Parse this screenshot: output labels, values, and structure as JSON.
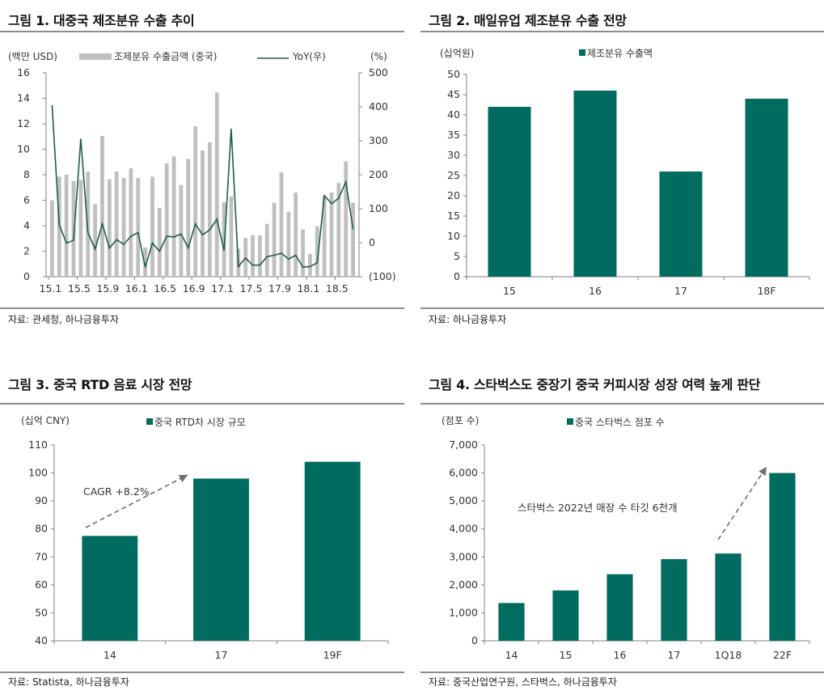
{
  "colors": {
    "bar_gray": "#bfbfbf",
    "line_green": "#1f5c4e",
    "bar_teal": "#006b5f",
    "axis": "#808080",
    "arrow": "#6e6e6e"
  },
  "chart_data": [
    {
      "id": "fig1",
      "type": "bar+line",
      "title": "그림 1. 대중국 제조분유 수출 추이",
      "ylabel_left": "(백만 USD)",
      "ylabel_right": "(%)",
      "legend": [
        "조제분유 수출금액 (중국)",
        "YoY(우)"
      ],
      "legend_position": "top",
      "ylim_left": [
        0,
        16
      ],
      "yticks_left": [
        "0",
        "2",
        "4",
        "6",
        "8",
        "10",
        "12",
        "14",
        "16"
      ],
      "ylim_right": [
        -100,
        500
      ],
      "yticks_right": [
        "(100)",
        "0",
        "100",
        "200",
        "300",
        "400",
        "500"
      ],
      "xtick_labels": [
        "15.1",
        "15.5",
        "15.9",
        "16.1",
        "16.5",
        "16.9",
        "17.1",
        "17.5",
        "17.9",
        "18.1",
        "18.5"
      ],
      "xtick_every": 4,
      "series": [
        {
          "name": "조제분유 수출금액 (중국)",
          "type": "bar",
          "axis": "left",
          "values": [
            6.0,
            7.85,
            8.0,
            7.5,
            7.6,
            8.25,
            5.7,
            11.05,
            7.65,
            8.25,
            7.75,
            8.5,
            7.75,
            2.3,
            7.85,
            5.4,
            8.9,
            9.45,
            7.2,
            9.25,
            11.8,
            9.9,
            10.55,
            14.45,
            5.85,
            6.3,
            2.2,
            3.05,
            3.25,
            3.25,
            4.15,
            5.8,
            8.2,
            5.1,
            6.6,
            3.7,
            1.8,
            3.95,
            6.3,
            6.6,
            7.35,
            9.05,
            5.8
          ]
        },
        {
          "name": "YoY(우)",
          "type": "line",
          "axis": "right",
          "values": [
            405,
            52,
            -1,
            7,
            306,
            30,
            -19,
            55,
            -16,
            9,
            -5,
            19,
            30,
            -72,
            -1,
            -25,
            19,
            17,
            26,
            -15,
            55,
            23,
            38,
            69,
            -23,
            336,
            -70,
            -45,
            -66,
            -66,
            -41,
            -37,
            -31,
            -48,
            -37,
            -72,
            -70,
            -59,
            139,
            115,
            131,
            179,
            40
          ]
        }
      ],
      "source": "자료: 관세청, 하나금융투자"
    },
    {
      "id": "fig2",
      "type": "bar",
      "title": "그림 2. 매일유업 제조분유 수출 전망",
      "ylabel": "(십억원)",
      "legend": [
        "제조분유 수출액"
      ],
      "legend_position": "top",
      "ylim": [
        0,
        50
      ],
      "yticks": [
        "0",
        "5",
        "10",
        "15",
        "20",
        "25",
        "30",
        "35",
        "40",
        "45",
        "50"
      ],
      "categories": [
        "15",
        "16",
        "17",
        "18F"
      ],
      "values": [
        42,
        46,
        26,
        44
      ],
      "source": "자료: 하나금융투자"
    },
    {
      "id": "fig3",
      "type": "bar",
      "title": "그림 3. 중국 RTD 음료 시장 전망",
      "ylabel": "(십억 CNY)",
      "legend": [
        "중국 RTD차 시장 규모"
      ],
      "legend_position": "top",
      "ylim": [
        40,
        110
      ],
      "yticks": [
        "40",
        "50",
        "60",
        "70",
        "80",
        "90",
        "100",
        "110"
      ],
      "categories": [
        "14",
        "17",
        "19F"
      ],
      "values": [
        77.5,
        98,
        104
      ],
      "annotation": "CAGR +8.2%",
      "source": "자료: Statista, 하나금융투자"
    },
    {
      "id": "fig4",
      "type": "bar",
      "title": "그림 4. 스타벅스도 중장기 중국 커피시장 성장 여력 높게 판단",
      "ylabel": "(점포 수)",
      "legend": [
        "중국 스타벅스 점포 수"
      ],
      "legend_position": "top",
      "ylim": [
        0,
        7000
      ],
      "yticks": [
        "0",
        "1,000",
        "2,000",
        "3,000",
        "4,000",
        "5,000",
        "6,000",
        "7,000"
      ],
      "categories": [
        "14",
        "15",
        "16",
        "17",
        "1Q18",
        "22F"
      ],
      "values": [
        1350,
        1800,
        2380,
        2920,
        3120,
        6000
      ],
      "annotation": "스타벅스 2022년 매장 수 타깃 6천개",
      "source": "자료: 중국산업연구원, 스타벅스, 하나금융투자"
    }
  ]
}
